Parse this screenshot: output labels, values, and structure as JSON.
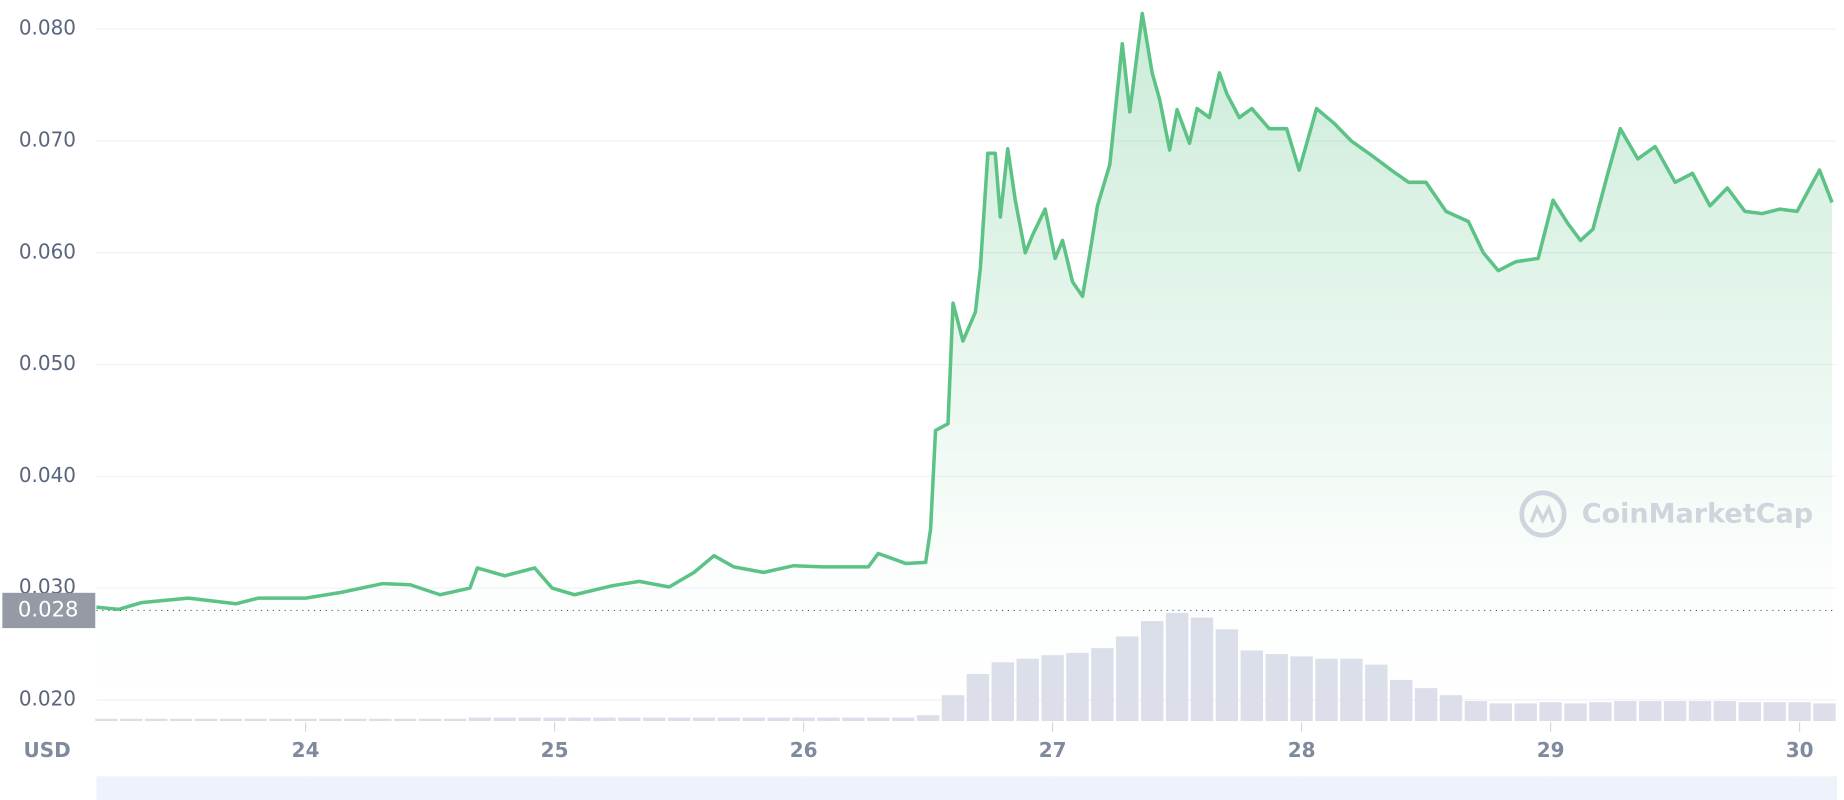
{
  "chart_data": {
    "type": "line",
    "currency": "USD",
    "watermark": "CoinMarketCap",
    "color": "#5cc285",
    "last_price": 0.028,
    "x": [
      23.16,
      23.25,
      23.34,
      23.53,
      23.72,
      23.81,
      24.0,
      24.14,
      24.31,
      24.42,
      24.54,
      24.66,
      24.69,
      24.8,
      24.92,
      24.99,
      25.08,
      25.23,
      25.34,
      25.46,
      25.56,
      25.64,
      25.72,
      25.84,
      25.96,
      26.08,
      26.26,
      26.3,
      26.41,
      26.49,
      26.51,
      26.53,
      26.58,
      26.6,
      26.64,
      26.69,
      26.71,
      26.74,
      26.77,
      26.79,
      26.82,
      26.85,
      26.89,
      26.92,
      26.97,
      27.01,
      27.04,
      27.08,
      27.12,
      27.15,
      27.18,
      27.23,
      27.28,
      27.31,
      27.36,
      27.4,
      27.43,
      27.47,
      27.5,
      27.55,
      27.58,
      27.63,
      27.67,
      27.7,
      27.75,
      27.8,
      27.87,
      27.94,
      27.99,
      28.06,
      28.13,
      28.2,
      28.27,
      28.36,
      28.43,
      28.5,
      28.58,
      28.67,
      28.73,
      28.79,
      28.86,
      28.95,
      29.01,
      29.07,
      29.12,
      29.17,
      29.23,
      29.28,
      29.35,
      29.42,
      29.5,
      29.57,
      29.64,
      29.71,
      29.78,
      29.85,
      29.92,
      29.99,
      30.08,
      30.13
    ],
    "values": [
      0.0283,
      0.0281,
      0.0287,
      0.0291,
      0.0286,
      0.0291,
      0.0291,
      0.0296,
      0.0304,
      0.0303,
      0.0294,
      0.03,
      0.0318,
      0.0311,
      0.0318,
      0.03,
      0.0294,
      0.0302,
      0.0306,
      0.0301,
      0.0314,
      0.0329,
      0.0319,
      0.0314,
      0.032,
      0.0319,
      0.0319,
      0.0331,
      0.0322,
      0.0323,
      0.0353,
      0.0441,
      0.0447,
      0.0555,
      0.0521,
      0.0547,
      0.0586,
      0.0689,
      0.0689,
      0.0632,
      0.0693,
      0.0647,
      0.06,
      0.0616,
      0.0639,
      0.0595,
      0.0611,
      0.0574,
      0.0561,
      0.06,
      0.0642,
      0.0679,
      0.0787,
      0.0726,
      0.0814,
      0.0761,
      0.0737,
      0.0692,
      0.0728,
      0.0698,
      0.0729,
      0.0721,
      0.0761,
      0.0742,
      0.0721,
      0.0729,
      0.0711,
      0.0711,
      0.0674,
      0.0729,
      0.0716,
      0.07,
      0.0689,
      0.0674,
      0.0663,
      0.0663,
      0.0637,
      0.0628,
      0.06,
      0.0584,
      0.0592,
      0.0595,
      0.0647,
      0.0626,
      0.0611,
      0.0621,
      0.0671,
      0.0711,
      0.0684,
      0.0695,
      0.0663,
      0.0671,
      0.0642,
      0.0658,
      0.0637,
      0.0635,
      0.0639,
      0.0637,
      0.0674,
      0.0645
    ],
    "volume": {
      "color": "#dcdfea",
      "x": [
        23.2,
        23.3,
        23.4,
        23.5,
        23.6,
        23.7,
        23.8,
        23.9,
        24.0,
        24.1,
        24.2,
        24.3,
        24.4,
        24.5,
        24.6,
        24.7,
        24.8,
        24.9,
        25.0,
        25.1,
        25.2,
        25.3,
        25.4,
        25.5,
        25.6,
        25.7,
        25.8,
        25.9,
        26.0,
        26.1,
        26.2,
        26.3,
        26.4,
        26.5,
        26.6,
        26.7,
        26.8,
        26.9,
        27.0,
        27.1,
        27.2,
        27.3,
        27.4,
        27.5,
        27.6,
        27.7,
        27.8,
        27.9,
        28.0,
        28.1,
        28.2,
        28.3,
        28.4,
        28.5,
        28.6,
        28.7,
        28.8,
        28.9,
        29.0,
        29.1,
        29.2,
        29.3,
        29.4,
        29.5,
        29.6,
        29.7,
        29.8,
        29.9,
        30.0,
        30.1
      ],
      "values": [
        2,
        2,
        2,
        2,
        2,
        2,
        2,
        2,
        2,
        2,
        2,
        2,
        2,
        2,
        2,
        3,
        3,
        3,
        3,
        3,
        3,
        3,
        3,
        3,
        3,
        3,
        3,
        3,
        3,
        3,
        3,
        3,
        3,
        5,
        22,
        40,
        50,
        53,
        56,
        58,
        62,
        72,
        85,
        92,
        88,
        78,
        60,
        57,
        55,
        53,
        53,
        48,
        35,
        28,
        22,
        17,
        15,
        15,
        16,
        15,
        16,
        17,
        17,
        17,
        17,
        17,
        16,
        16,
        16,
        15
      ],
      "vlim": [
        0,
        100
      ]
    },
    "xlim": [
      23.16,
      30.15
    ],
    "xticks": [
      24,
      25,
      26,
      27,
      28,
      29,
      30
    ],
    "ylim": [
      0.018,
      0.0826
    ],
    "yticks": [
      {
        "value": 0.02,
        "label": "0.020"
      },
      {
        "value": 0.03,
        "label": "0.030"
      },
      {
        "value": 0.04,
        "label": "0.040"
      },
      {
        "value": 0.05,
        "label": "0.050"
      },
      {
        "value": 0.06,
        "label": "0.060"
      },
      {
        "value": 0.07,
        "label": "0.070"
      },
      {
        "value": 0.08,
        "label": "0.080"
      }
    ],
    "grid": true
  }
}
